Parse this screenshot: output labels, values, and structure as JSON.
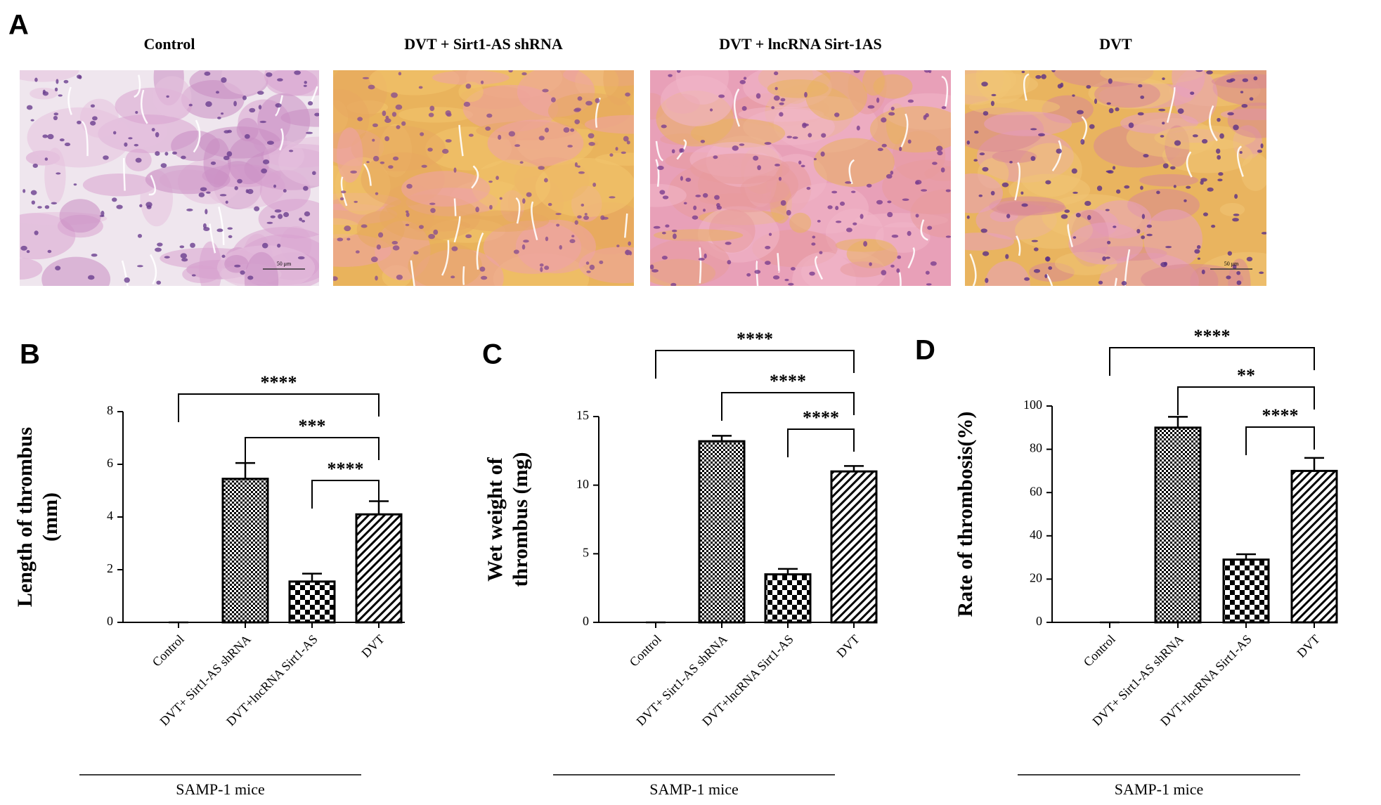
{
  "panel_a": {
    "label": "A",
    "images": [
      {
        "title": "Control",
        "scale_bar": "50 μm"
      },
      {
        "title": "DVT + Sirt1-AS shRNA"
      },
      {
        "title": "DVT + lncRNA Sirt-1AS"
      },
      {
        "title": "DVT",
        "scale_bar": "50 μm"
      }
    ]
  },
  "chart_data": [
    {
      "type": "bar",
      "panel_label": "B",
      "ylabel": [
        "Length of thrombus",
        "(mm)"
      ],
      "categories": [
        "Control",
        "DVT+ Sirt1-AS shRNA",
        "DVT+lncRNA Sirt1-AS",
        "DVT"
      ],
      "values": [
        0,
        5.45,
        1.55,
        4.1
      ],
      "errors": [
        0,
        0.6,
        0.3,
        0.5
      ],
      "fill_patterns": [
        "none",
        "fine-check",
        "check",
        "diagonal"
      ],
      "ylim": [
        0,
        8
      ],
      "yticks": [
        0,
        2,
        4,
        6,
        8
      ],
      "group_label": "SAMP-1 mice",
      "significance": [
        {
          "from": 0,
          "to": 3,
          "text": "****"
        },
        {
          "from": 1,
          "to": 3,
          "text": "***"
        },
        {
          "from": 2,
          "to": 3,
          "text": "****"
        }
      ]
    },
    {
      "type": "bar",
      "panel_label": "C",
      "ylabel": [
        "Wet weight of",
        "thrombus (mg)"
      ],
      "categories": [
        "Control",
        "DVT+ Sirt1-AS shRNA",
        "DVT+lncRNA Sirt1-AS",
        "DVT"
      ],
      "values": [
        0,
        13.2,
        3.5,
        11.0
      ],
      "errors": [
        0,
        0.4,
        0.4,
        0.4
      ],
      "fill_patterns": [
        "none",
        "fine-check",
        "check",
        "diagonal"
      ],
      "ylim": [
        0,
        15
      ],
      "yticks": [
        0,
        5,
        10,
        15
      ],
      "group_label": "SAMP-1 mice",
      "significance": [
        {
          "from": 0,
          "to": 3,
          "text": "****"
        },
        {
          "from": 1,
          "to": 3,
          "text": "****"
        },
        {
          "from": 2,
          "to": 3,
          "text": "****"
        }
      ]
    },
    {
      "type": "bar",
      "panel_label": "D",
      "ylabel": [
        "Rate of thrombosis(%)"
      ],
      "categories": [
        "Control",
        "DVT+ Sirt1-AS shRNA",
        "DVT+lncRNA Sirt1-AS",
        "DVT"
      ],
      "values": [
        0,
        90,
        29,
        70
      ],
      "errors": [
        0,
        5,
        2.5,
        6
      ],
      "fill_patterns": [
        "none",
        "fine-check",
        "check",
        "diagonal"
      ],
      "ylim": [
        0,
        100
      ],
      "yticks": [
        0,
        20,
        40,
        60,
        80,
        100
      ],
      "group_label": "SAMP-1 mice",
      "significance": [
        {
          "from": 0,
          "to": 3,
          "text": "****"
        },
        {
          "from": 1,
          "to": 3,
          "text": "**"
        },
        {
          "from": 2,
          "to": 3,
          "text": "****"
        }
      ]
    }
  ]
}
